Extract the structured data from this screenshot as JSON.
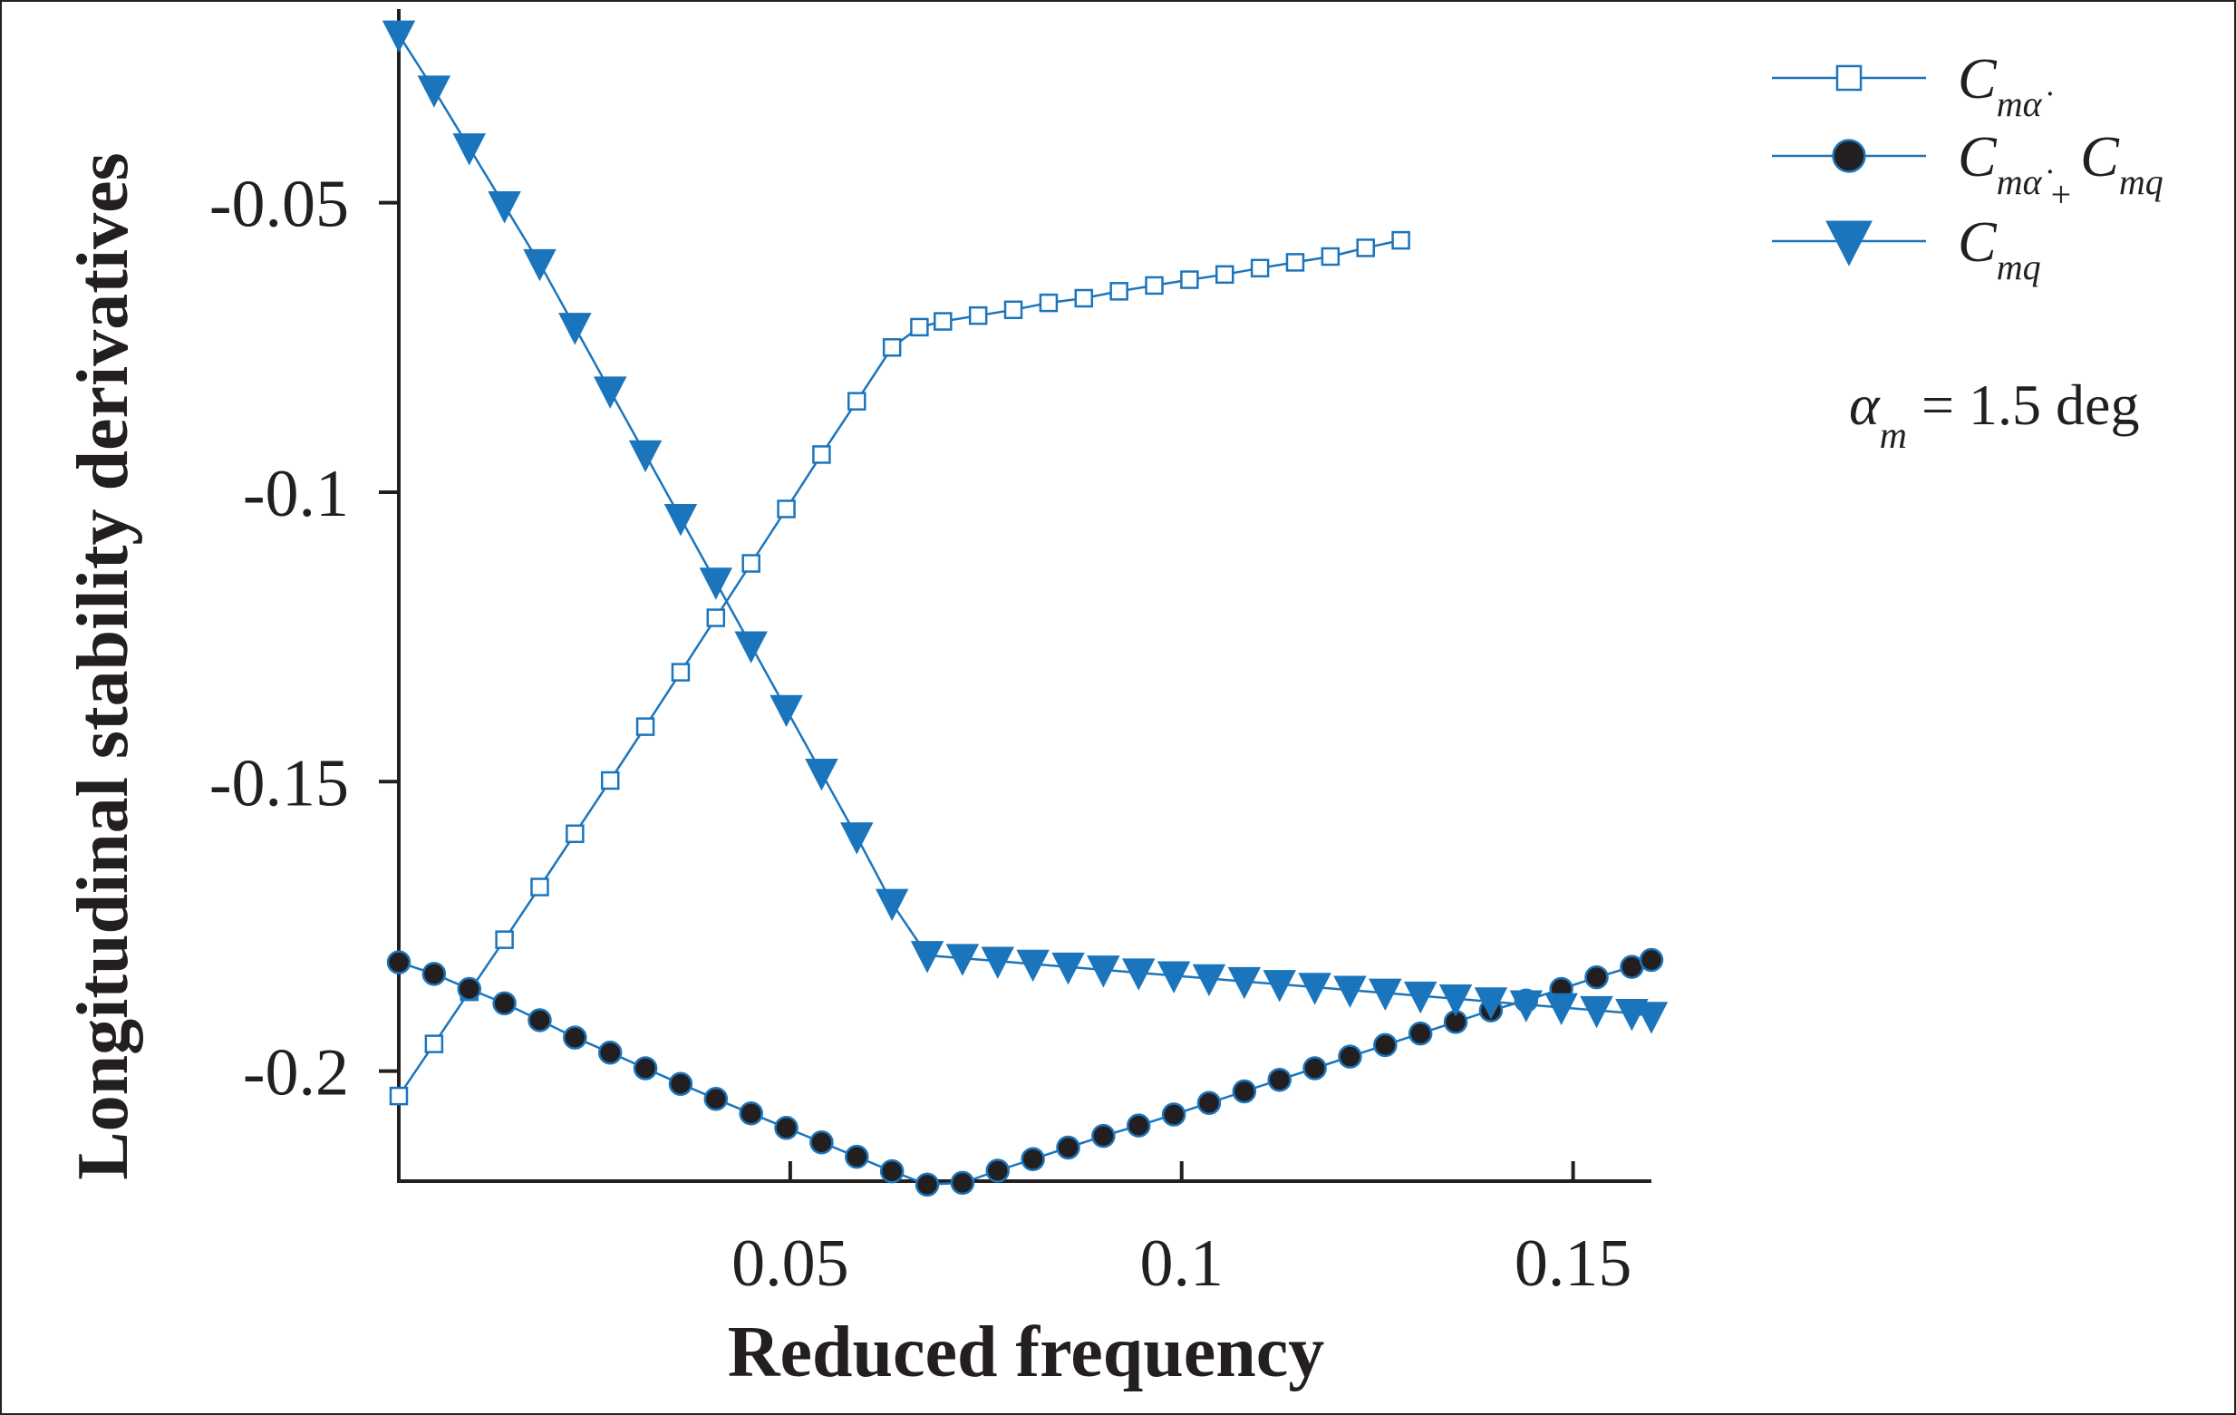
{
  "chart_data": {
    "type": "line",
    "xlabel": "Reduced frequency",
    "ylabel": "Longitudinal stability derivatives",
    "xlim": [
      0,
      0.16
    ],
    "ylim": [
      -0.219,
      -0.02
    ],
    "xticks": [
      0.05,
      0.1,
      0.15
    ],
    "xtick_labels": [
      "0.05",
      "0.1",
      "0.15"
    ],
    "yticks": [
      -0.05,
      -0.1,
      -0.15,
      -0.2
    ],
    "ytick_labels": [
      "-0.05",
      "-0.1",
      "-0.15",
      "-0.2"
    ],
    "grid": false,
    "legend_position": "top-right",
    "annotation": {
      "symbol": "α",
      "subscript": "m",
      "text": " = 1.5 deg"
    },
    "colors": {
      "blue": "#1b75bc",
      "dark": "#231f20"
    },
    "series": [
      {
        "name": "C_mα̇",
        "legend": {
          "C": "C",
          "sub": "mα̇"
        },
        "marker": "square-open",
        "x": [
          0.0,
          0.0045,
          0.009,
          0.0135,
          0.018,
          0.0225,
          0.027,
          0.0315,
          0.036,
          0.0405,
          0.045,
          0.0495,
          0.054,
          0.0585,
          0.063,
          0.0665,
          0.0695,
          0.074,
          0.0785,
          0.083,
          0.0875,
          0.092,
          0.0965,
          0.101,
          0.1055,
          0.11,
          0.1145,
          0.119,
          0.1235,
          0.128
        ],
        "values": [
          -0.2043,
          -0.1953,
          -0.1863,
          -0.1773,
          -0.1682,
          -0.159,
          -0.1498,
          -0.1405,
          -0.1311,
          -0.1217,
          -0.1123,
          -0.1029,
          -0.0935,
          -0.0843,
          -0.075,
          -0.0715,
          -0.0705,
          -0.0695,
          -0.0685,
          -0.0673,
          -0.0665,
          -0.0653,
          -0.0643,
          -0.0633,
          -0.0624,
          -0.0613,
          -0.0603,
          -0.0593,
          -0.0578,
          -0.0565
        ]
      },
      {
        "name": "C_mα̇ + C_mq",
        "legend": {
          "C": "C",
          "sub": "mα̇",
          "plus": "+",
          "C2": "C",
          "sub2": "mq"
        },
        "marker": "circle-filled",
        "x": [
          0.0,
          0.0045,
          0.009,
          0.0135,
          0.018,
          0.0225,
          0.027,
          0.0315,
          0.036,
          0.0405,
          0.045,
          0.0495,
          0.054,
          0.0585,
          0.063,
          0.0675,
          0.072,
          0.0765,
          0.081,
          0.0855,
          0.09,
          0.0945,
          0.099,
          0.1035,
          0.108,
          0.1125,
          0.117,
          0.1215,
          0.126,
          0.1305,
          0.135,
          0.1395,
          0.144,
          0.1485,
          0.153,
          0.1575,
          0.16
        ],
        "values": [
          -0.1812,
          -0.1832,
          -0.1858,
          -0.1883,
          -0.1912,
          -0.1942,
          -0.1968,
          -0.1995,
          -0.2022,
          -0.2048,
          -0.2073,
          -0.2098,
          -0.2123,
          -0.2148,
          -0.2173,
          -0.2196,
          -0.2193,
          -0.2172,
          -0.2152,
          -0.2132,
          -0.2112,
          -0.2094,
          -0.2075,
          -0.2055,
          -0.2035,
          -0.2015,
          -0.1995,
          -0.1975,
          -0.1955,
          -0.1935,
          -0.1915,
          -0.1895,
          -0.1878,
          -0.1858,
          -0.1838,
          -0.182,
          -0.1808
        ]
      },
      {
        "name": "C_mq",
        "legend": {
          "C": "C",
          "sub": "mq"
        },
        "marker": "triangle-down-filled",
        "x": [
          0.0,
          0.0045,
          0.009,
          0.0135,
          0.018,
          0.0225,
          0.027,
          0.0315,
          0.036,
          0.0405,
          0.045,
          0.0495,
          0.054,
          0.0585,
          0.063,
          0.0675,
          0.072,
          0.0765,
          0.081,
          0.0855,
          0.09,
          0.0945,
          0.099,
          0.1035,
          0.108,
          0.1125,
          0.117,
          0.1215,
          0.126,
          0.1305,
          0.135,
          0.1395,
          0.144,
          0.1485,
          0.153,
          0.1575,
          0.16
        ],
        "values": [
          -0.021,
          -0.0305,
          -0.0405,
          -0.0505,
          -0.0605,
          -0.0715,
          -0.0825,
          -0.0935,
          -0.1045,
          -0.1155,
          -0.1265,
          -0.1375,
          -0.1485,
          -0.1595,
          -0.171,
          -0.18,
          -0.1805,
          -0.181,
          -0.1815,
          -0.182,
          -0.1825,
          -0.183,
          -0.1835,
          -0.184,
          -0.1845,
          -0.185,
          -0.1855,
          -0.186,
          -0.1865,
          -0.187,
          -0.1875,
          -0.188,
          -0.1885,
          -0.189,
          -0.1895,
          -0.19,
          -0.1905
        ]
      }
    ]
  }
}
